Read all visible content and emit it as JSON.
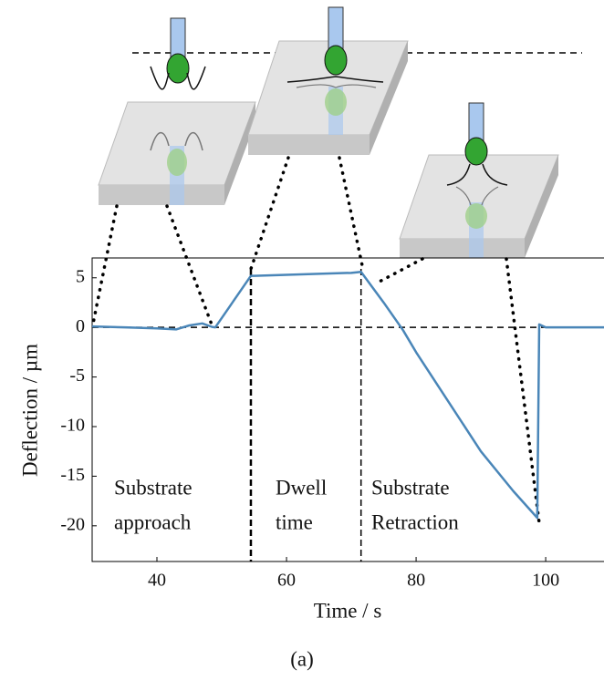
{
  "chart_data": {
    "type": "line",
    "ylabel": "Deflection / µm",
    "xlabel": "Time / s",
    "caption": "(a)",
    "xlim": [
      30,
      109
    ],
    "ylim": [
      -23.6,
      7
    ],
    "xticks": [
      40,
      60,
      80,
      100
    ],
    "yticks": [
      5,
      0,
      -5,
      -10,
      -15,
      -20
    ],
    "series": [
      {
        "color": "#4a86b8",
        "x": [
          30,
          35,
          40,
          43,
          45,
          47,
          48.5,
          49,
          54.5,
          55,
          60,
          65,
          70,
          71.5,
          75,
          78,
          80,
          85,
          90,
          95,
          98.7,
          99,
          100,
          109
        ],
        "values": [
          0.1,
          0,
          -0.1,
          -0.2,
          0.2,
          0.4,
          0.05,
          0,
          5.2,
          5.2,
          5.3,
          5.4,
          5.5,
          5.6,
          2.5,
          -0.3,
          -2.5,
          -7.5,
          -12.5,
          -16.5,
          -19.2,
          0.3,
          0,
          0
        ]
      }
    ],
    "zero_line": 0,
    "phase_boundaries": [
      54.5,
      71.5
    ],
    "annotations": [
      [
        "Substrate",
        "approach"
      ],
      [
        "Dwell",
        "time"
      ],
      [
        "Substrate",
        "Retraction"
      ]
    ]
  }
}
